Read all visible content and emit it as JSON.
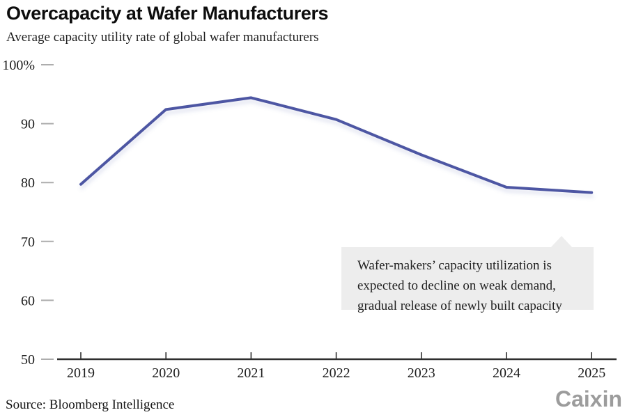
{
  "header": {
    "title": "Overcapacity at Wafer Manufacturers",
    "subtitle": "Average capacity utility rate of global wafer manufacturers"
  },
  "chart_data": {
    "type": "line",
    "title": "Overcapacity at Wafer Manufacturers",
    "subtitle": "Average capacity utility rate of global wafer manufacturers",
    "series_name": "Average capacity utility rate of global wafer manufacturers (%)",
    "x": [
      "2019",
      "2020",
      "2021",
      "2022",
      "2023",
      "2024",
      "2025"
    ],
    "values": [
      79.7,
      92.4,
      94.4,
      90.7,
      84.7,
      79.2,
      78.3
    ],
    "ylim": [
      50,
      100
    ],
    "yticks": [
      50,
      60,
      70,
      80,
      90,
      100
    ],
    "ytick_labels": [
      "50",
      "60",
      "70",
      "80",
      "90",
      "100%"
    ],
    "grid": false,
    "legend": "none",
    "line_color": "#4d57a3",
    "axis_color": "#2e2e2e",
    "ytick_color": "#adadad",
    "annotation": {
      "lines": [
        "Wafer-makers’ capacity utilization is",
        "expected to decline on weak demand,",
        "gradual release of newly built capacity"
      ],
      "box_color": "#ededed",
      "points_to": "2024–2025 segment"
    }
  },
  "footer": {
    "source": "Source: Bloomberg Intelligence",
    "logo": "Caixin"
  }
}
